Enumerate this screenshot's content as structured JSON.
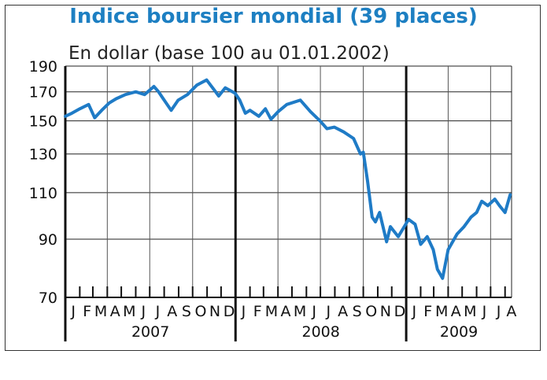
{
  "chart_data": {
    "type": "line",
    "title": "Indice boursier mondial (39 places)",
    "subtitle": "En dollar (base 100 au 01.01.2002)",
    "xlabel": "",
    "ylabel": "",
    "y_scale": "log",
    "ylim": [
      70,
      190
    ],
    "yticks": [
      70,
      90,
      110,
      130,
      150,
      170,
      190
    ],
    "xlim": [
      "2007-01-01",
      "2009-08-15"
    ],
    "grid": true,
    "legend": "none",
    "color": "#1f7bc6",
    "month_labels": [
      "J",
      "F",
      "M",
      "A",
      "M",
      "J",
      "J",
      "A",
      "S",
      "O",
      "N",
      "D",
      "J",
      "F",
      "M",
      "A",
      "M",
      "J",
      "J",
      "A",
      "S",
      "O",
      "N",
      "D",
      "J",
      "F",
      "M",
      "A",
      "M",
      "J",
      "J",
      "A"
    ],
    "year_labels": [
      "2007",
      "2008",
      "2009"
    ],
    "series": [
      {
        "x": [
          "2007-01-01",
          "2007-01-15",
          "2007-02-01",
          "2007-02-20",
          "2007-03-05",
          "2007-03-20",
          "2007-04-05",
          "2007-04-20",
          "2007-05-10",
          "2007-06-01",
          "2007-06-20",
          "2007-07-10",
          "2007-07-20",
          "2007-08-01",
          "2007-08-16",
          "2007-08-31",
          "2007-09-20",
          "2007-10-10",
          "2007-10-31",
          "2007-11-15",
          "2007-11-26",
          "2007-12-10",
          "2007-12-31",
          "2008-01-10",
          "2008-01-22",
          "2008-02-01",
          "2008-02-20",
          "2008-03-05",
          "2008-03-17",
          "2008-04-01",
          "2008-04-20",
          "2008-05-19",
          "2008-06-10",
          "2008-06-30",
          "2008-07-15",
          "2008-07-31",
          "2008-08-20",
          "2008-09-10",
          "2008-09-25",
          "2008-10-01",
          "2008-10-10",
          "2008-10-20",
          "2008-10-27",
          "2008-11-05",
          "2008-11-20",
          "2008-11-28",
          "2008-12-15",
          "2008-12-31",
          "2009-01-06",
          "2009-01-20",
          "2009-02-01",
          "2009-02-15",
          "2009-02-28",
          "2009-03-09",
          "2009-03-20",
          "2009-04-01",
          "2009-04-20",
          "2009-05-05",
          "2009-05-20",
          "2009-06-01",
          "2009-06-12",
          "2009-06-25",
          "2009-07-10",
          "2009-07-20",
          "2009-08-01",
          "2009-08-12"
        ],
        "values": [
          153,
          155,
          158,
          161,
          152,
          157,
          162,
          165,
          168,
          170,
          168,
          174,
          170,
          164,
          157,
          164,
          168,
          175,
          179,
          172,
          167,
          173,
          169,
          164,
          155,
          157,
          153,
          158,
          151,
          156,
          161,
          164,
          156,
          150,
          145,
          146,
          143,
          139,
          130,
          131,
          116,
          99,
          97,
          101,
          89,
          95,
          91,
          96,
          98,
          96,
          88,
          91,
          86,
          79,
          76,
          86,
          92,
          95,
          99,
          101,
          106,
          104,
          107,
          104,
          101,
          109
        ]
      }
    ]
  }
}
